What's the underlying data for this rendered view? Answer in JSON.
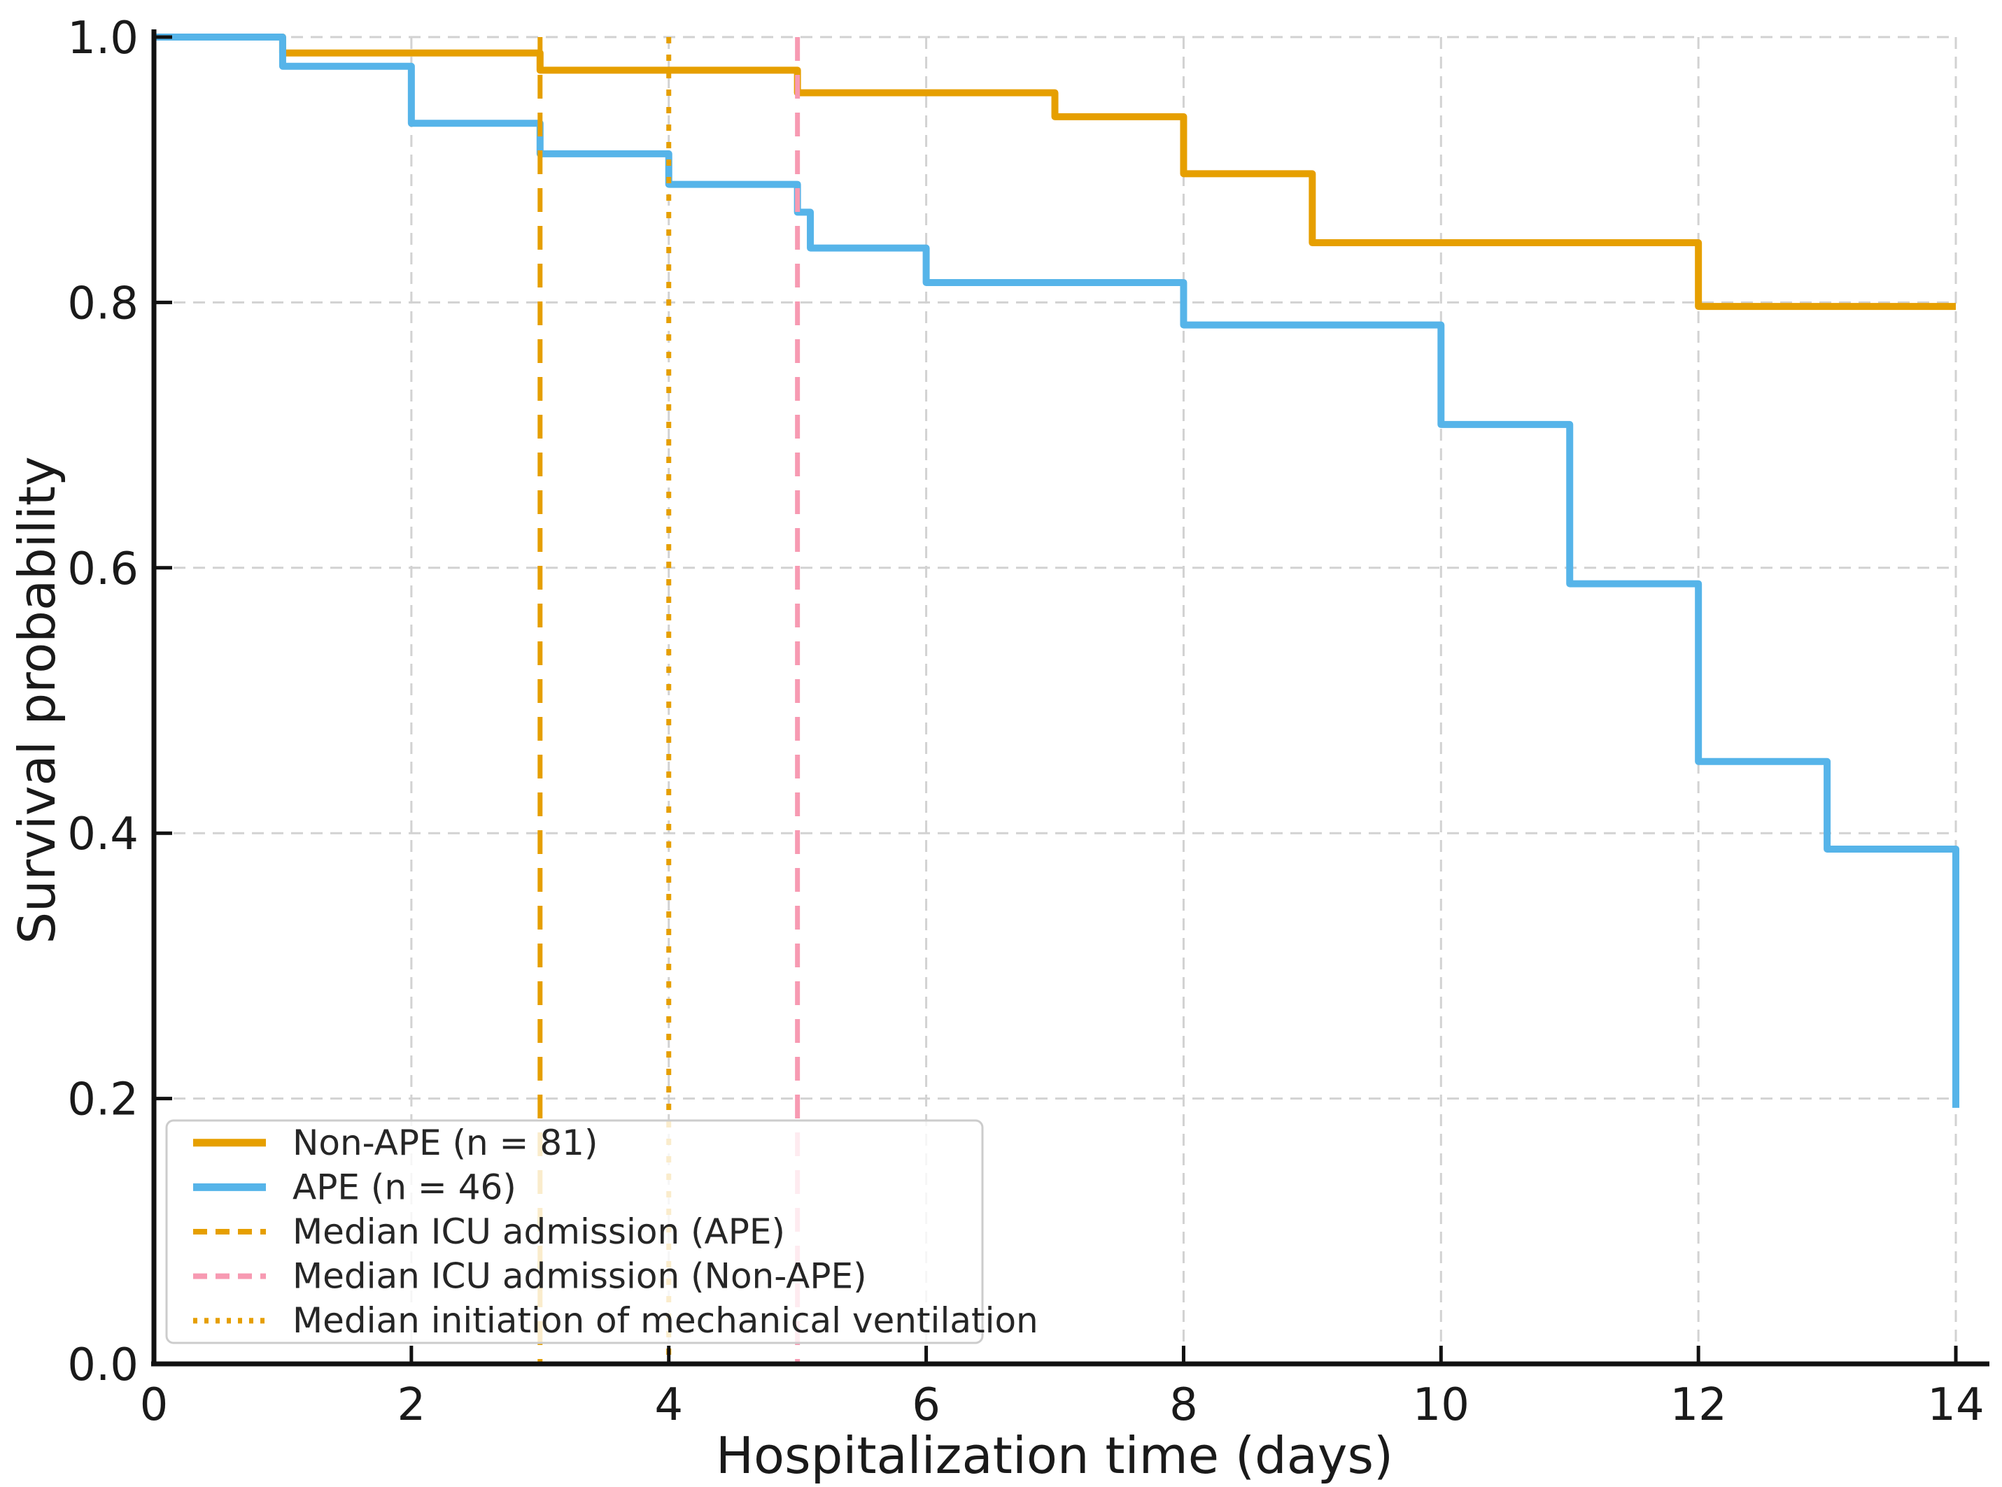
{
  "chart_data": {
    "type": "line",
    "subtype": "step-post-kaplan-meier",
    "title": "",
    "xlabel": "Hospitalization time (days)",
    "ylabel": "Survival probability",
    "xlim": [
      0,
      14
    ],
    "ylim": [
      0.0,
      1.0
    ],
    "grid": true,
    "grid_style": "dashed",
    "legend_position": "lower-left",
    "x_ticks": [
      {
        "v": 0,
        "label": "0"
      },
      {
        "v": 2,
        "label": "2"
      },
      {
        "v": 4,
        "label": "4"
      },
      {
        "v": 6,
        "label": "6"
      },
      {
        "v": 8,
        "label": "8"
      },
      {
        "v": 10,
        "label": "10"
      },
      {
        "v": 12,
        "label": "12"
      },
      {
        "v": 14,
        "label": "14"
      }
    ],
    "y_ticks": [
      {
        "v": 0.0,
        "label": "0.0"
      },
      {
        "v": 0.2,
        "label": "0.2"
      },
      {
        "v": 0.4,
        "label": "0.4"
      },
      {
        "v": 0.6,
        "label": "0.6"
      },
      {
        "v": 0.8,
        "label": "0.8"
      },
      {
        "v": 1.0,
        "label": "1.0"
      }
    ],
    "series": [
      {
        "name": "Non-APE (n = 81)",
        "color": "#E69F00",
        "style": "solid",
        "points": [
          [
            0,
            1.0
          ],
          [
            1,
            0.988
          ],
          [
            3,
            0.975
          ],
          [
            5,
            0.958
          ],
          [
            7,
            0.94
          ],
          [
            8,
            0.897
          ],
          [
            9,
            0.845
          ],
          [
            12,
            0.797
          ],
          [
            14,
            0.797
          ]
        ]
      },
      {
        "name": "APE (n = 46)",
        "color": "#56B4E9",
        "style": "solid",
        "points": [
          [
            0,
            1.0
          ],
          [
            1,
            0.978
          ],
          [
            2,
            0.935
          ],
          [
            3,
            0.912
          ],
          [
            4,
            0.889
          ],
          [
            5,
            0.868
          ],
          [
            5.1,
            0.841
          ],
          [
            6,
            0.815
          ],
          [
            8,
            0.783
          ],
          [
            10,
            0.708
          ],
          [
            11,
            0.588
          ],
          [
            12,
            0.454
          ],
          [
            13,
            0.388
          ],
          [
            14,
            0.193
          ]
        ]
      }
    ],
    "vlines": [
      {
        "label": "Median ICU admission (APE)",
        "x": 3,
        "color": "#E69F00",
        "style": "dashed"
      },
      {
        "label": "Median ICU admission (Non-APE)",
        "x": 5,
        "color": "#F79AB2",
        "style": "dashed"
      },
      {
        "label": "Median initiation of mechanical ventilation",
        "x": 4,
        "color": "#E69F00",
        "style": "dotted"
      }
    ]
  },
  "legend": {
    "items": [
      {
        "label": "Non-APE (n = 81)",
        "color": "#E69F00",
        "dash": "solid"
      },
      {
        "label": "APE (n = 46)",
        "color": "#56B4E9",
        "dash": "solid"
      },
      {
        "label": "Median ICU admission (APE)",
        "color": "#E69F00",
        "dash": "dashed"
      },
      {
        "label": "Median ICU admission (Non-APE)",
        "color": "#F79AB2",
        "dash": "dashed"
      },
      {
        "label": "Median initiation of mechanical ventilation",
        "color": "#E69F00",
        "dash": "dotted"
      }
    ]
  },
  "colors": {
    "non_ape": "#E69F00",
    "ape": "#56B4E9",
    "median_icu_non_ape": "#F79AB2",
    "grid": "#D2D2D2",
    "axis": "#111111",
    "text": "#1a1a1a",
    "legend_border": "#CCCCCC"
  }
}
